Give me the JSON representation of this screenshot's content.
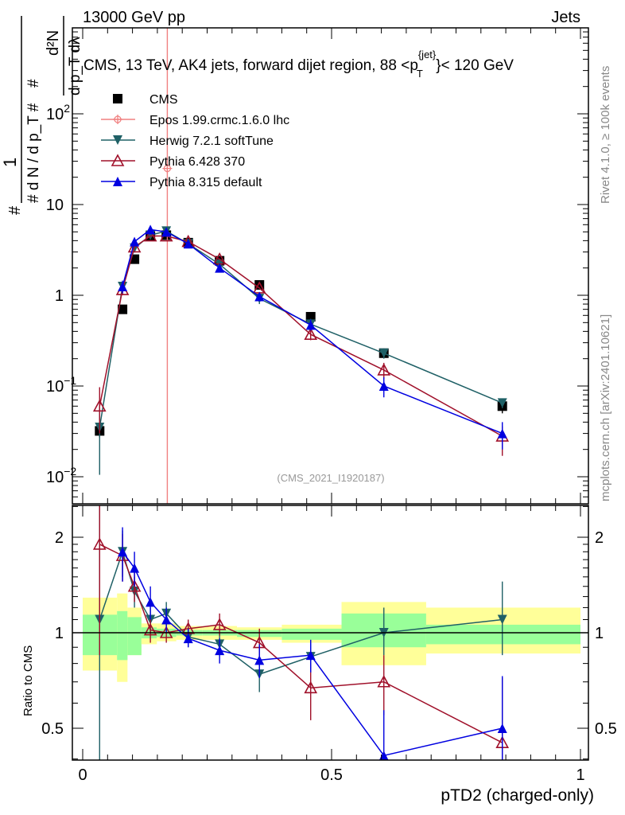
{
  "header": {
    "left": "13000 GeV pp",
    "right": "Jets",
    "title": "CMS, 13 TeV, AK4 jets, forward dijet region, 88 <p",
    "title_sup": "{jet}",
    "title_sub": "T",
    "title_end": "}< 120 GeV",
    "side_top": "Rivet 4.1.0, ≥ 100k events",
    "side_bottom": "mcplots.cern.ch [arXiv:2401.10621]",
    "analysis": "(CMS_2021_I1920187)"
  },
  "chart_data": [
    {
      "type": "line",
      "title": "CMS, 13 TeV, AK4 jets, forward dijet region, 88 < p_T^{jet} < 120 GeV",
      "ylabel": "1/(dN/dp_T) d²N/(dp_T dλ)",
      "xlabel": "pTD2 (charged-only)",
      "yscale": "log",
      "xlim": [
        0,
        1
      ],
      "ylim": [
        0.005,
        890
      ],
      "ytick_labels": [
        "10^-2",
        "10^-1",
        "1",
        "10",
        "10^2"
      ],
      "ytick_values": [
        0.01,
        0.1,
        1,
        10,
        100
      ],
      "legend_position": "top-left",
      "x": [
        0.034,
        0.08,
        0.104,
        0.136,
        0.168,
        0.212,
        0.275,
        0.355,
        0.458,
        0.605,
        0.843
      ],
      "series": [
        {
          "name": "CMS",
          "color": "#000000",
          "marker": "square",
          "values": [
            0.032,
            0.7,
            2.5,
            4.5,
            4.6,
            3.8,
            2.4,
            1.3,
            0.58,
            0.23,
            0.06
          ],
          "err": [
            [
              0.027,
              0.038
            ],
            null,
            null,
            null,
            null,
            null,
            null,
            null,
            null,
            null,
            [
              0.05,
              0.07
            ]
          ]
        },
        {
          "name": "Epos 1.99.crmc.1.6.0 lhc",
          "color": "#f08080",
          "marker": "open-cross-circle",
          "x": [
            0.17
          ],
          "values": [
            25
          ],
          "err": [
            [
              0.005,
              890
            ]
          ]
        },
        {
          "name": "Herwig 7.2.1 softTune",
          "color": "#1f6066",
          "marker": "down-triangle",
          "values": [
            0.035,
            1.25,
            3.3,
            4.6,
            5.1,
            3.7,
            2.2,
            0.92,
            0.48,
            0.23,
            0.065
          ],
          "err": [
            [
              0.0105,
              0.06
            ],
            [
              1.1,
              1.4
            ],
            [
              3.0,
              3.6
            ],
            null,
            null,
            null,
            null,
            [
              0.8,
              1.05
            ],
            [
              0.42,
              0.55
            ],
            [
              0.2,
              0.26
            ],
            [
              0.057,
              0.073
            ]
          ]
        },
        {
          "name": "Pythia 6.428 370",
          "color": "#a0102a",
          "marker": "open-triangle",
          "values": [
            0.06,
            1.15,
            3.4,
            4.5,
            4.5,
            3.9,
            2.5,
            1.2,
            0.37,
            0.15,
            0.028
          ],
          "err": [
            [
              0.03,
              0.097
            ],
            [
              1.0,
              1.3
            ],
            null,
            null,
            null,
            null,
            null,
            null,
            [
              0.32,
              0.43
            ],
            [
              0.12,
              0.18
            ],
            [
              0.017,
              0.036
            ]
          ]
        },
        {
          "name": "Pythia 8.315 default",
          "color": "#0000e0",
          "marker": "triangle",
          "values": [
            null,
            1.25,
            3.9,
            5.3,
            5.0,
            3.7,
            2.0,
            0.97,
            0.47,
            0.1,
            0.03
          ],
          "err": [
            null,
            [
              1.05,
              1.45
            ],
            [
              3.5,
              4.3
            ],
            null,
            null,
            null,
            null,
            null,
            [
              0.41,
              0.54
            ],
            [
              0.075,
              0.125
            ],
            [
              0.02,
              0.04
            ]
          ]
        }
      ]
    },
    {
      "type": "line",
      "ylabel": "Ratio to CMS",
      "xlabel": "pTD2 (charged-only)",
      "yscale": "log",
      "xlim": [
        0,
        1
      ],
      "ylim": [
        0.397,
        2.52
      ],
      "ytick_labels": [
        "0.5",
        "1",
        "2"
      ],
      "ytick_values": [
        0.5,
        1,
        2
      ],
      "xtick_labels": [
        "0",
        "0.5",
        "1"
      ],
      "xtick_values": [
        0,
        0.5,
        1
      ],
      "bin_edges": [
        0,
        0.069,
        0.09,
        0.118,
        0.149,
        0.188,
        0.24,
        0.31,
        0.4,
        0.52,
        0.69,
        1.0
      ],
      "band_green": [
        [
          0.85,
          1.14
        ],
        [
          0.82,
          1.17
        ],
        [
          0.85,
          1.12
        ],
        [
          0.96,
          1.04
        ],
        [
          0.97,
          1.03
        ],
        [
          0.98,
          1.02
        ],
        [
          0.98,
          1.02
        ],
        [
          0.97,
          1.02
        ],
        [
          0.95,
          1.03
        ],
        [
          0.9,
          1.15
        ],
        [
          0.92,
          1.06
        ]
      ],
      "band_yellow": [
        [
          0.76,
          1.29
        ],
        [
          0.7,
          1.33
        ],
        [
          0.85,
          1.2
        ],
        [
          0.92,
          1.07
        ],
        [
          0.94,
          1.07
        ],
        [
          0.95,
          1.05
        ],
        [
          0.95,
          1.05
        ],
        [
          0.95,
          1.04
        ],
        [
          0.93,
          1.06
        ],
        [
          0.79,
          1.25
        ],
        [
          0.86,
          1.2
        ]
      ],
      "x": [
        0.034,
        0.08,
        0.104,
        0.136,
        0.168,
        0.212,
        0.275,
        0.355,
        0.458,
        0.605,
        0.843
      ],
      "series": [
        {
          "name": "Herwig 7.2.1 softTune",
          "color": "#1f6066",
          "marker": "down-triangle",
          "values": [
            1.1,
            1.8,
            1.35,
            1.1,
            1.15,
            0.97,
            0.92,
            0.74,
            0.84,
            1.0,
            1.1
          ],
          "err": [
            [
              0.3,
              2.6
            ],
            [
              1.5,
              2.1
            ],
            [
              1.2,
              1.5
            ],
            [
              1.0,
              1.2
            ],
            [
              1.05,
              1.25
            ],
            [
              0.9,
              1.05
            ],
            [
              0.85,
              1.0
            ],
            [
              0.65,
              0.83
            ],
            [
              0.75,
              0.95
            ],
            [
              0.85,
              1.2
            ],
            [
              0.85,
              1.45
            ]
          ]
        },
        {
          "name": "Pythia 6.428 370",
          "color": "#a0102a",
          "marker": "open-triangle",
          "values": [
            1.9,
            1.75,
            1.4,
            1.02,
            1.0,
            1.03,
            1.06,
            0.93,
            0.67,
            0.7,
            0.45
          ],
          "err": [
            [
              0.85,
              2.6
            ],
            [
              1.45,
              2.05
            ],
            [
              1.25,
              1.55
            ],
            [
              0.93,
              1.1
            ],
            [
              0.93,
              1.08
            ],
            [
              0.96,
              1.1
            ],
            [
              0.98,
              1.15
            ],
            [
              0.8,
              1.03
            ],
            [
              0.53,
              0.8
            ],
            [
              0.55,
              0.85
            ],
            [
              0.35,
              0.72
            ]
          ]
        },
        {
          "name": "Pythia 8.315 default",
          "color": "#0000e0",
          "marker": "triangle",
          "values": [
            null,
            1.8,
            1.6,
            1.25,
            1.1,
            0.96,
            0.88,
            0.82,
            0.85,
            0.41,
            0.5
          ],
          "err": [
            null,
            [
              1.45,
              2.15
            ],
            [
              1.4,
              1.8
            ],
            [
              1.1,
              1.4
            ],
            [
              1.0,
              1.2
            ],
            [
              0.9,
              1.03
            ],
            [
              0.8,
              0.96
            ],
            [
              0.72,
              0.92
            ],
            [
              0.75,
              0.95
            ],
            [
              0.33,
              0.57
            ],
            [
              0.38,
              0.73
            ]
          ]
        }
      ]
    }
  ],
  "ratio_label": "Ratio to CMS",
  "x_label": "pTD2 (charged-only)",
  "y_label": {
    "num": "1",
    "den": "# d N / d p_T #",
    "num2": "d²N",
    "den2": "d p_T dλ",
    "hash": "#"
  }
}
